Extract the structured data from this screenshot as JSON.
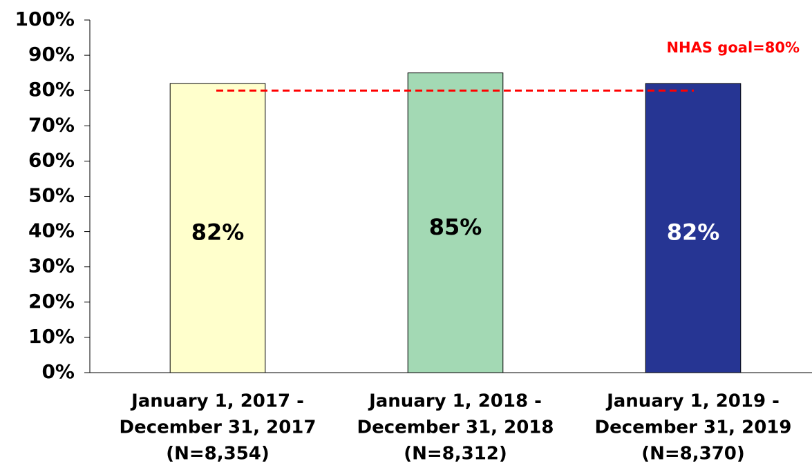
{
  "chart_data": {
    "type": "bar",
    "categories": [
      [
        "January 1, 2017 -",
        "December 31, 2017",
        "(N=8,354)"
      ],
      [
        "January 1, 2018 -",
        "December 31, 2018",
        "(N=8,312)"
      ],
      [
        "January 1, 2019 -",
        "December 31, 2019",
        "(N=8,370)"
      ]
    ],
    "values": [
      82,
      85,
      82
    ],
    "value_labels": [
      "82%",
      "85%",
      "82%"
    ],
    "colors": [
      "#ffffcc",
      "#a3d9b4",
      "#263593"
    ],
    "value_label_colors": [
      "#000000",
      "#000000",
      "#ffffff"
    ],
    "ylim": [
      0,
      100
    ],
    "yticks": [
      {
        "value": 0,
        "label": "0%"
      },
      {
        "value": 10,
        "label": "10%"
      },
      {
        "value": 20,
        "label": "20%"
      },
      {
        "value": 30,
        "label": "30%"
      },
      {
        "value": 40,
        "label": "40%"
      },
      {
        "value": 50,
        "label": "50%"
      },
      {
        "value": 60,
        "label": "60%"
      },
      {
        "value": 70,
        "label": "70%"
      },
      {
        "value": 80,
        "label": "80%"
      },
      {
        "value": 90,
        "label": "90%"
      },
      {
        "value": 100,
        "label": "100%"
      }
    ],
    "reference_line": {
      "value": 80,
      "label": "NHAS goal=80%",
      "color": "#ff0000"
    }
  }
}
